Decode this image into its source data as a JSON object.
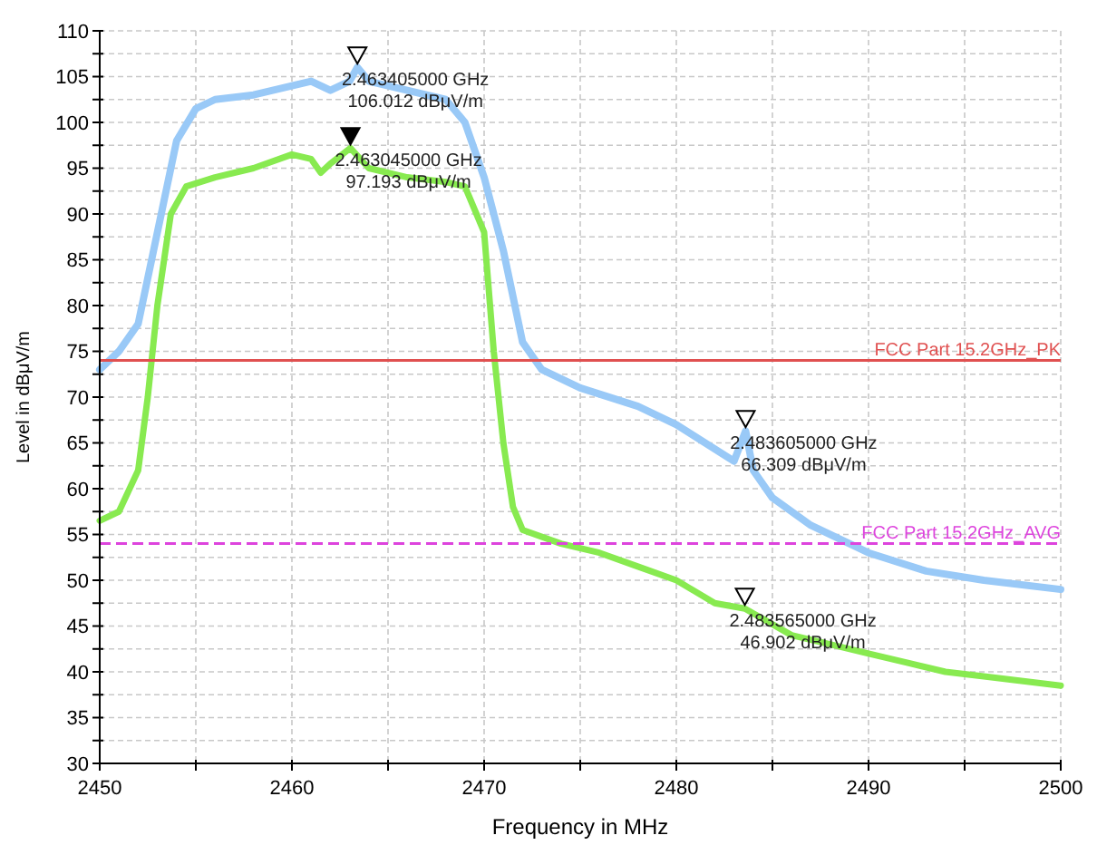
{
  "chart_data": {
    "type": "line",
    "xlabel": "Frequency in MHz",
    "ylabel": "Level in dBμV/m",
    "xlim": [
      2450,
      2500
    ],
    "xticks": [
      2450,
      {
        "value": 2455,
        "label": null
      },
      2460,
      {
        "value": 2465,
        "label": null
      },
      2470,
      {
        "value": 2475,
        "label": null
      },
      2480,
      {
        "value": 2485,
        "label": null
      },
      2490,
      {
        "value": 2495,
        "label": null
      },
      2500
    ],
    "ylim": [
      30,
      110
    ],
    "yticks": [
      30,
      {
        "value": 32.5,
        "label": null
      },
      35,
      {
        "value": 37.5,
        "label": null
      },
      40,
      {
        "value": 42.5,
        "label": null
      },
      45,
      {
        "value": 47.5,
        "label": null
      },
      50,
      {
        "value": 52.5,
        "label": null
      },
      55,
      {
        "value": 57.5,
        "label": null
      },
      60,
      {
        "value": 62.5,
        "label": null
      },
      65,
      {
        "value": 67.5,
        "label": null
      },
      70,
      {
        "value": 72.5,
        "label": null
      },
      75,
      {
        "value": 77.5,
        "label": null
      },
      80,
      {
        "value": 82.5,
        "label": null
      },
      85,
      {
        "value": 87.5,
        "label": null
      },
      90,
      {
        "value": 92.5,
        "label": null
      },
      95,
      {
        "value": 97.5,
        "label": null
      },
      100,
      {
        "value": 102.5,
        "label": null
      },
      105,
      {
        "value": 107.5,
        "label": null
      },
      110
    ],
    "grid": true,
    "marker": "none",
    "line_style": "solid",
    "series": [
      {
        "color": "#99c9f7",
        "x": [
          2450,
          2451,
          2452,
          2453,
          2454,
          2455,
          2456,
          2458,
          2460,
          2461,
          2462,
          2463,
          2463.405,
          2464,
          2466,
          2468,
          2469,
          2470,
          2471,
          2472,
          2473,
          2475,
          2478,
          2480,
          2483,
          2483.605,
          2484,
          2485,
          2487,
          2490,
          2493,
          2496,
          2500
        ],
        "values": [
          73,
          75,
          78,
          88,
          98,
          101.5,
          102.5,
          103,
          104,
          104.5,
          103.5,
          104.5,
          106.012,
          104.5,
          103.5,
          102.5,
          100,
          94,
          86,
          76,
          73,
          71,
          69,
          67,
          63,
          66.309,
          62,
          59,
          56,
          53,
          51,
          50,
          49
        ]
      },
      {
        "color": "#88ea50",
        "x": [
          2450,
          2451,
          2452,
          2452.5,
          2453,
          2453.7,
          2454.5,
          2456,
          2458,
          2460,
          2461,
          2461.5,
          2462,
          2463.045,
          2464,
          2466,
          2468,
          2469,
          2470,
          2470.5,
          2471,
          2471.5,
          2472,
          2474,
          2476,
          2478,
          2480,
          2482,
          2483.565,
          2486,
          2488,
          2490,
          2492,
          2494,
          2496,
          2500
        ],
        "values": [
          56.5,
          57.5,
          62,
          70,
          80,
          90,
          93,
          94,
          95,
          96.5,
          96,
          94.5,
          95.5,
          97.193,
          95,
          94,
          93.5,
          93,
          88,
          75,
          65,
          58,
          55.5,
          54,
          53,
          51.5,
          50,
          47.5,
          46.902,
          44,
          43,
          42,
          41,
          40,
          39.5,
          38.5
        ]
      }
    ],
    "ref_lines": [
      {
        "axis": "y",
        "value": 74,
        "label": "FCC Part 15.2GHz_PK",
        "color": "#e05050",
        "line_style": "solid"
      },
      {
        "axis": "y",
        "value": 54,
        "label": "FCC Part 15.2GHz_AVG",
        "color": "#dd44dd",
        "line_style": "dashed"
      }
    ],
    "annotations": [
      {
        "text": "2.463405000 GHz\n106.012 dBμV/m",
        "x": 2463.405,
        "y": 106.012
      },
      {
        "text": "2.463045000 GHz\n97.193 dBμV/m",
        "x": 2463.045,
        "y": 97.193
      },
      {
        "text": "2.483605000 GHz\n66.309 dBμV/m",
        "x": 2483.605,
        "y": 66.309
      },
      {
        "text": "2.483565000 GHz\n46.902 dBμV/m",
        "x": 2483.565,
        "y": 46.902
      }
    ]
  }
}
